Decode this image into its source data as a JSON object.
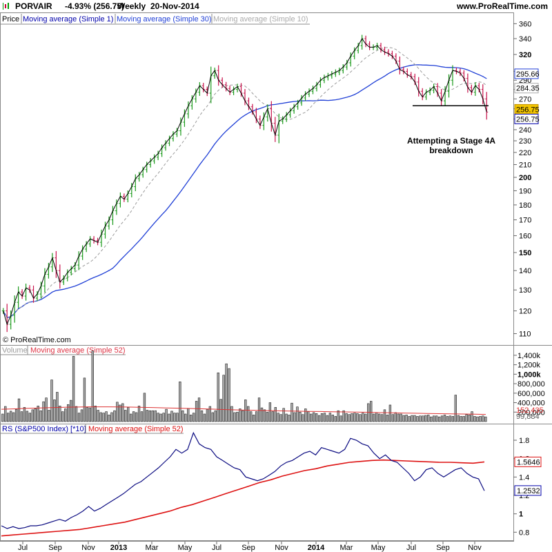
{
  "header": {
    "instrument": "PORVAIR",
    "change": "-4.93% (256.75)",
    "period": "Weekly",
    "date": "20-Nov-2014",
    "site": "www.ProRealTime.com"
  },
  "watermark": "© ProRealTime.com",
  "annotation": {
    "line1": "Attempting a Stage 4A",
    "line2": "breakdown",
    "support_level": 263
  },
  "colors": {
    "up": "#1a9a1a",
    "down": "#c8104a",
    "ma1": "#000000",
    "ma10": "#9a9a9a",
    "ma30": "#1f3fd6",
    "rs": "#0a0a80",
    "rs_ma": "#dd1111",
    "vol": "#999999"
  },
  "chart_data": [
    {
      "type": "line",
      "panel": "price",
      "legend": [
        "Price",
        "Moving average (Simple 1)",
        "Moving average (Simple 30)",
        "Moving average (Simple 10)"
      ],
      "y_scale": "log",
      "ylim": [
        107,
        368
      ],
      "y_ticks": [
        110,
        120,
        130,
        140,
        150,
        160,
        170,
        180,
        190,
        200,
        210,
        220,
        230,
        240,
        250,
        260,
        270,
        280,
        290,
        300,
        320,
        340,
        360
      ],
      "y_ticks_bold": [
        150,
        200,
        320
      ],
      "x_tick_labels": [
        "Jul",
        "Sep",
        "Nov",
        "2013",
        "Mar",
        "May",
        "Jul",
        "Sep",
        "Nov",
        "2014",
        "Mar",
        "May",
        "Jul",
        "Sep",
        "Nov"
      ],
      "x_tick_bold": [
        "2013",
        "2014"
      ],
      "close": [
        120,
        114,
        118,
        124,
        129,
        127,
        131,
        130,
        126,
        128,
        132,
        138,
        142,
        147,
        140,
        134,
        136,
        139,
        141,
        143,
        148,
        152,
        155,
        158,
        157,
        156,
        161,
        166,
        170,
        176,
        181,
        186,
        184,
        188,
        193,
        199,
        202,
        206,
        210,
        213,
        216,
        219,
        224,
        228,
        232,
        236,
        239,
        247,
        255,
        263,
        270,
        277,
        284,
        280,
        276,
        295,
        301,
        290,
        285,
        281,
        277,
        280,
        283,
        276,
        268,
        262,
        257,
        250,
        244,
        252,
        260,
        246,
        235,
        248,
        250,
        254,
        258,
        262,
        266,
        271,
        275,
        278,
        281,
        285,
        290,
        293,
        295,
        297,
        299,
        301,
        305,
        310,
        318,
        325,
        331,
        340,
        333,
        329,
        329,
        331,
        326,
        323,
        321,
        318,
        312,
        302,
        300,
        296,
        294,
        288,
        278,
        272,
        277,
        279,
        283,
        276,
        268,
        278,
        290,
        301,
        300,
        298,
        292,
        282,
        277,
        284,
        280,
        270,
        256.75
      ],
      "series": [
        {
          "name": "Moving average (Simple 1)",
          "last": 256.75
        },
        {
          "name": "Moving average (Simple 10)",
          "last": 284.35
        },
        {
          "name": "Moving average (Simple 30)",
          "last": 295.66
        }
      ],
      "price_label": "256.75"
    },
    {
      "type": "bar",
      "panel": "volume",
      "legend": [
        "Volume",
        "Moving average (Simple 52)"
      ],
      "ylim": [
        0,
        1500000
      ],
      "y_ticks": [
        "1,400k",
        "1,200k",
        "1,000k",
        "800,000",
        "600,000",
        "400,000",
        "200,000"
      ],
      "y_ticks_bold": [
        "1,000k"
      ],
      "values": [
        160000,
        320000,
        180000,
        220000,
        190000,
        260000,
        480000,
        210000,
        300000,
        220000,
        180000,
        250000,
        270000,
        330000,
        230000,
        420000,
        500000,
        240000,
        880000,
        460000,
        620000,
        330000,
        210000,
        270000,
        360000,
        450000,
        1380000,
        320000,
        180000,
        250000,
        920000,
        300000,
        290000,
        1490000,
        330000,
        240000,
        190000,
        180000,
        210000,
        140000,
        190000,
        230000,
        410000,
        350000,
        380000,
        240000,
        300000,
        160000,
        210000,
        190000,
        330000,
        210000,
        600000,
        240000,
        230000,
        230000,
        230000,
        180000,
        160000,
        180000,
        260000,
        160000,
        220000,
        180000,
        180000,
        840000,
        230000,
        160000,
        280000,
        140000,
        180000,
        430000,
        500000,
        230000,
        160000,
        260000,
        320000,
        190000,
        230000,
        1030000,
        470000,
        980000,
        1220000,
        1120000,
        320000,
        190000,
        200000,
        270000,
        230000,
        460000,
        320000,
        210000,
        140000,
        210000,
        500000,
        290000,
        250000,
        200000,
        400000,
        210000,
        300000,
        180000,
        150000,
        280000,
        160000,
        140000,
        390000,
        190000,
        310000,
        200000,
        150000,
        270000,
        210000,
        160000,
        190000,
        170000,
        130000,
        170000,
        180000,
        130000,
        180000,
        140000,
        110000,
        230000,
        120000,
        230000,
        170000,
        150000,
        170000,
        180000,
        170000,
        150000,
        180000,
        160000,
        380000,
        430000,
        160000,
        190000,
        160000,
        150000,
        250000,
        140000,
        350000,
        150000,
        190000,
        160000,
        160000,
        130000,
        140000,
        110000,
        130000,
        130000,
        110000,
        120000,
        120000,
        130000,
        140000,
        100000,
        120000,
        120000,
        100000,
        120000,
        140000,
        110000,
        120000,
        110000,
        560000,
        130000,
        110000,
        110000,
        150000,
        140000,
        210000,
        110000,
        100000,
        110000,
        120000,
        99884
      ],
      "series": [
        {
          "name": "Moving average (Simple 52)",
          "values": [
            260000,
            268000,
            278000,
            286000,
            292000,
            300000,
            306000,
            310000,
            312000,
            312000,
            310000,
            306000,
            300000,
            294000,
            288000,
            282000,
            276000,
            270000,
            262000,
            254000,
            246000,
            240000,
            234000,
            228000,
            224000,
            220000,
            216000,
            212000,
            208000,
            204000,
            200000,
            196000,
            190000,
            186000,
            180000,
            176000,
            172000,
            168000,
            164000,
            160000,
            156000,
            152000
          ],
          "last": "152,435"
        }
      ],
      "last_label": "99,884"
    },
    {
      "type": "line",
      "panel": "rs",
      "legend": [
        "RS (S&P500 Index) [*10]",
        "Moving average (Simple 52)"
      ],
      "ylim": [
        0.72,
        1.95
      ],
      "y_ticks": [
        0.8,
        1,
        1.2,
        1.4,
        1.6,
        1.8
      ],
      "y_ticks_bold": [
        1
      ],
      "y_tick_labels": [
        "0.8",
        "1",
        "1.2",
        "1.4",
        "1.6",
        "1.8"
      ],
      "series": [
        {
          "name": "RS (S&P500 Index) [*10]",
          "values": [
            0.87,
            0.84,
            0.86,
            0.84,
            0.85,
            0.87,
            0.87,
            0.88,
            0.9,
            0.92,
            0.94,
            0.92,
            0.96,
            0.99,
            1.03,
            1.08,
            1.03,
            1.06,
            1.1,
            1.14,
            1.18,
            1.22,
            1.27,
            1.32,
            1.35,
            1.4,
            1.45,
            1.5,
            1.56,
            1.62,
            1.7,
            1.66,
            1.7,
            1.88,
            1.76,
            1.72,
            1.7,
            1.62,
            1.58,
            1.54,
            1.5,
            1.48,
            1.4,
            1.38,
            1.36,
            1.38,
            1.42,
            1.46,
            1.52,
            1.56,
            1.58,
            1.62,
            1.66,
            1.68,
            1.64,
            1.72,
            1.7,
            1.68,
            1.66,
            1.7,
            1.82,
            1.8,
            1.76,
            1.74,
            1.66,
            1.6,
            1.64,
            1.58,
            1.56,
            1.5,
            1.44,
            1.36,
            1.4,
            1.48,
            1.5,
            1.44,
            1.4,
            1.44,
            1.48,
            1.5,
            1.44,
            1.4,
            1.38,
            1.25
          ],
          "last": "1.2532"
        },
        {
          "name": "Moving average (Simple 52)",
          "values": [
            0.76,
            0.77,
            0.78,
            0.79,
            0.8,
            0.81,
            0.82,
            0.83,
            0.85,
            0.87,
            0.89,
            0.91,
            0.94,
            0.97,
            1.0,
            1.03,
            1.07,
            1.1,
            1.14,
            1.18,
            1.22,
            1.26,
            1.3,
            1.34,
            1.37,
            1.41,
            1.44,
            1.47,
            1.49,
            1.52,
            1.54,
            1.56,
            1.57,
            1.58,
            1.585,
            1.58,
            1.575,
            1.57,
            1.565,
            1.56,
            1.56,
            1.555,
            1.55,
            1.5646
          ],
          "last": "1.5646"
        }
      ]
    }
  ]
}
